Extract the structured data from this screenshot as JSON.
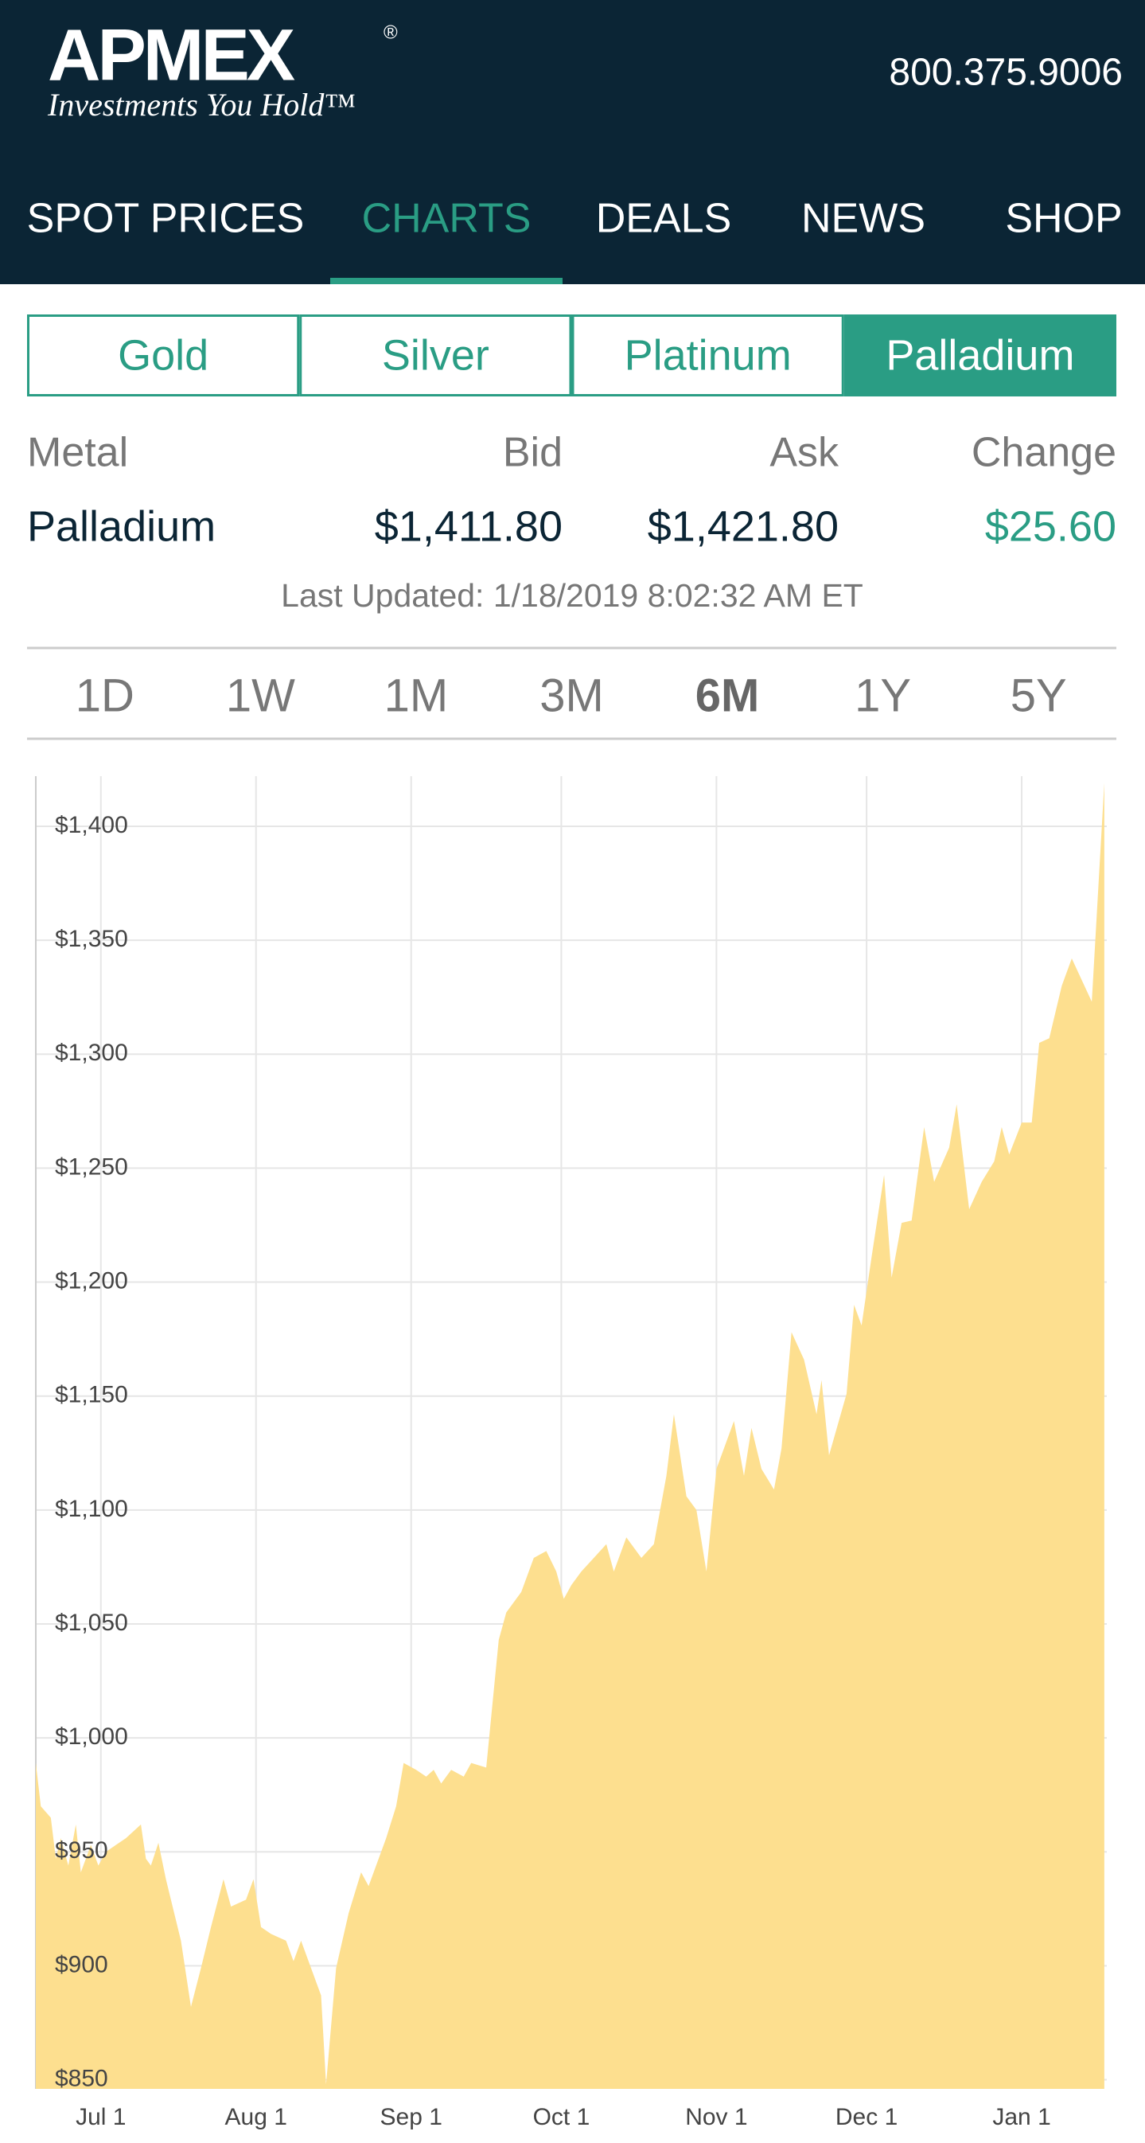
{
  "header": {
    "logo": "APMEX",
    "logo_mark": "®",
    "tagline": "Investments You Hold™",
    "phone": "800.375.9006"
  },
  "nav": {
    "items": [
      "SPOT PRICES",
      "CHARTS",
      "DEALS",
      "NEWS",
      "SHOP"
    ],
    "active": 1
  },
  "metal_tabs": {
    "items": [
      "Gold",
      "Silver",
      "Platinum",
      "Palladium"
    ],
    "active": 3
  },
  "quote": {
    "headers": [
      "Metal",
      "Bid",
      "Ask",
      "Change"
    ],
    "row": [
      "Palladium",
      "$1,411.80",
      "$1,421.80",
      "$25.60"
    ]
  },
  "last_updated": "Last Updated: 1/18/2019 8:02:32 AM ET",
  "ranges": {
    "items": [
      "1D",
      "1W",
      "1M",
      "3M",
      "6M",
      "1Y",
      "5Y"
    ],
    "active": 4
  },
  "chart_data": {
    "type": "area",
    "color": "#fddf8f",
    "grid": true,
    "x": [
      -13,
      -12,
      -10,
      -9,
      -8,
      -6.5,
      -5,
      -4,
      -2,
      -0.5,
      1,
      3,
      5,
      8,
      9,
      10,
      11.5,
      13,
      16,
      18,
      20,
      22,
      24.5,
      26,
      29,
      30.5,
      32,
      34,
      37,
      38.5,
      40,
      42.5,
      44,
      45,
      47,
      49.5,
      52,
      53.5,
      57,
      59,
      60.5,
      63,
      65,
      66.5,
      68,
      70,
      72.5,
      74,
      77,
      79.5,
      81,
      84,
      86.5,
      89,
      91,
      92.5,
      94,
      96,
      98.5,
      101,
      102.5,
      105,
      108,
      110.5,
      113,
      114.5,
      117,
      119,
      121,
      123,
      126.5,
      128.5,
      130,
      132,
      134.5,
      136,
      138,
      140.5,
      143,
      144,
      145.5,
      149,
      150.5,
      152,
      154,
      156.5,
      158,
      160,
      162,
      164.5,
      166.5,
      169.5,
      171,
      173.5,
      176,
      178.5,
      180,
      181.5,
      184,
      186,
      187.5,
      189.5,
      192,
      194,
      198,
      200.5
    ],
    "values": [
      989,
      970,
      965,
      947,
      956,
      944,
      962,
      941,
      953,
      944,
      950,
      953,
      956,
      962,
      947,
      944,
      954,
      938,
      911,
      882,
      899,
      917,
      938,
      926,
      929,
      938,
      917,
      914,
      911,
      902,
      911,
      896,
      887,
      848,
      899,
      923,
      941,
      935,
      956,
      970,
      989,
      986,
      983,
      986,
      980,
      986,
      983,
      989,
      987,
      1043,
      1055,
      1064,
      1079,
      1082,
      1073,
      1061,
      1067,
      1073,
      1079,
      1085,
      1073,
      1088,
      1079,
      1085,
      1115,
      1142,
      1106,
      1100,
      1073,
      1118,
      1139,
      1115,
      1136,
      1118,
      1109,
      1127,
      1178,
      1166,
      1142,
      1157,
      1124,
      1151,
      1190,
      1181,
      1211,
      1247,
      1202,
      1226,
      1227,
      1268,
      1244,
      1259,
      1278,
      1232,
      1244,
      1253,
      1268,
      1256,
      1270,
      1270,
      1305,
      1307,
      1330,
      1342,
      1323,
      1419
    ],
    "xlim": [
      -13,
      201
    ],
    "xticks": [
      {
        "value": 0,
        "label": "Jul 1"
      },
      {
        "value": 31,
        "label": "Aug 1"
      },
      {
        "value": 62,
        "label": "Sep 1"
      },
      {
        "value": 92,
        "label": "Oct 1"
      },
      {
        "value": 123,
        "label": "Nov 1"
      },
      {
        "value": 153,
        "label": "Dec 1"
      },
      {
        "value": 184,
        "label": "Jan 1"
      }
    ],
    "ylim": [
      846,
      1422
    ],
    "yticks": [
      {
        "value": 850,
        "label": "$850"
      },
      {
        "value": 900,
        "label": "$900"
      },
      {
        "value": 950,
        "label": "$950"
      },
      {
        "value": 1000,
        "label": "$1,000"
      },
      {
        "value": 1050,
        "label": "$1,050"
      },
      {
        "value": 1100,
        "label": "$1,100"
      },
      {
        "value": 1150,
        "label": "$1,150"
      },
      {
        "value": 1200,
        "label": "$1,200"
      },
      {
        "value": 1250,
        "label": "$1,250"
      },
      {
        "value": 1300,
        "label": "$1,300"
      },
      {
        "value": 1350,
        "label": "$1,350"
      },
      {
        "value": 1400,
        "label": "$1,400"
      }
    ]
  }
}
